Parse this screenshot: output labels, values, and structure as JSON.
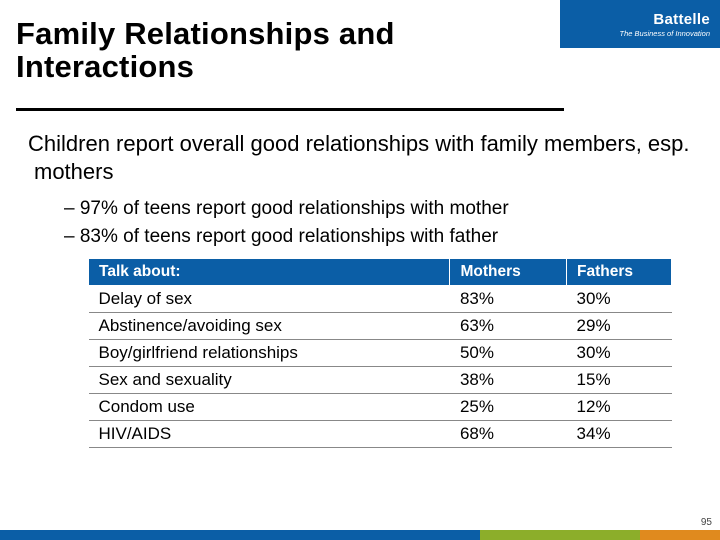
{
  "brand": {
    "name": "Battelle",
    "tagline": "The Business of Innovation"
  },
  "title_line1": "Family Relationships and",
  "title_line2": "Interactions",
  "lead": "Children report overall good relationships with family members, esp. mothers",
  "bullets": [
    "97% of teens report good relationships with mother",
    "83% of teens report good relationships with father"
  ],
  "table": {
    "columns": [
      "Talk about:",
      "Mothers",
      "Fathers"
    ],
    "col_widths": [
      "62%",
      "20%",
      "18%"
    ],
    "header_bg": "#0b5ea6",
    "header_color": "#ffffff",
    "row_border": "#888888",
    "rows": [
      [
        "Delay of sex",
        "83%",
        "30%"
      ],
      [
        "Abstinence/avoiding sex",
        "63%",
        "29%"
      ],
      [
        "Boy/girlfriend relationships",
        "50%",
        "30%"
      ],
      [
        "Sex and sexuality",
        "38%",
        "15%"
      ],
      [
        "Condom use",
        "25%",
        "12%"
      ],
      [
        "HIV/AIDS",
        "68%",
        "34%"
      ]
    ]
  },
  "footer_colors": [
    "#0b5ea6",
    "#8cae2a",
    "#e08a1e"
  ],
  "page_number": "95",
  "title_fontsize": 31,
  "lead_fontsize": 22,
  "sub_fontsize": 19,
  "cell_fontsize": 17
}
